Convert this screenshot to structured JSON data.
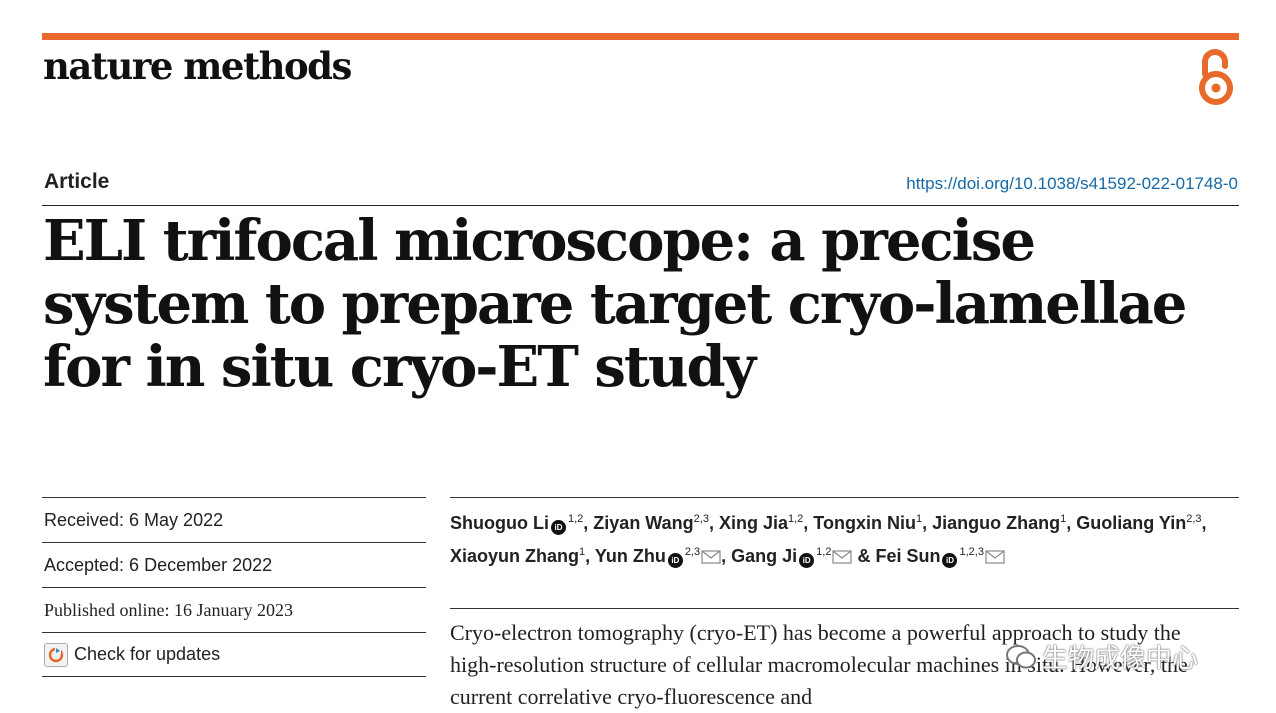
{
  "journal": "nature methods",
  "article_type": "Article",
  "doi": "https://doi.org/10.1038/s41592-022-01748-0",
  "title": "ELI trifocal microscope: a precise system to prepare target cryo-lamellae for in situ cryo-ET study",
  "dates": {
    "received": "Received: 6 May 2022",
    "accepted": "Accepted: 6 December 2022",
    "published": "Published online: 16 January 2023"
  },
  "check_updates": "Check for updates",
  "authors": [
    {
      "name": "Shuoguo Li",
      "aff": "1,2",
      "orcid": true,
      "mail": false,
      "sep": ", "
    },
    {
      "name": "Ziyan Wang",
      "aff": "2,3",
      "orcid": false,
      "mail": false,
      "sep": ", "
    },
    {
      "name": "Xing Jia",
      "aff": "1,2",
      "orcid": false,
      "mail": false,
      "sep": ", "
    },
    {
      "name": "Tongxin Niu",
      "aff": "1",
      "orcid": false,
      "mail": false,
      "sep": ", "
    },
    {
      "name": "Jianguo Zhang",
      "aff": "1",
      "orcid": false,
      "mail": false,
      "sep": ", "
    },
    {
      "name": "Guoliang Yin",
      "aff": "2,3",
      "orcid": false,
      "mail": false,
      "sep": ", "
    },
    {
      "name": "Xiaoyun Zhang",
      "aff": "1",
      "orcid": false,
      "mail": false,
      "sep": ", "
    },
    {
      "name": "Yun Zhu",
      "aff": "2,3",
      "orcid": true,
      "mail": true,
      "sep": ", "
    },
    {
      "name": "Gang Ji",
      "aff": "1,2",
      "orcid": true,
      "mail": true,
      "sep": " & "
    },
    {
      "name": "Fei Sun",
      "aff": "1,2,3",
      "orcid": true,
      "mail": true,
      "sep": ""
    }
  ],
  "abstract": "Cryo-electron tomography (cryo-ET) has become a powerful approach to study the high-resolution structure of cellular macromolecular machines in situ. However, the current correlative cryo-fluorescence and",
  "watermark": "生物成像中心",
  "colors": {
    "accent": "#e8692c",
    "link": "#1469a6"
  }
}
